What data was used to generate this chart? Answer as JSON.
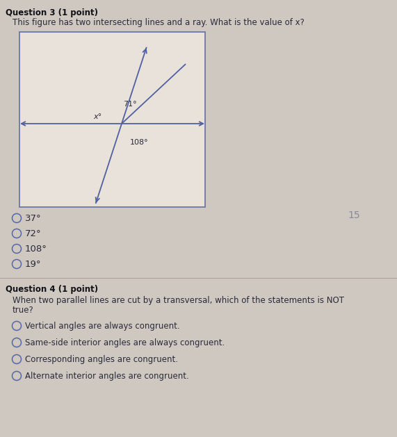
{
  "q3_header": "Question 3 (1 point)",
  "q3_text": "This figure has two intersecting lines and a ray. What is the value of x?",
  "angle_71": "71°",
  "angle_x": "x°",
  "angle_108": "108°",
  "q3_options": [
    "37°",
    "72°",
    "108°",
    "19°"
  ],
  "q4_header": "Question 4 (1 point)",
  "q4_text_line1": "When two parallel lines are cut by a transversal, which of the statements is NOT",
  "q4_text_line2": "true?",
  "q4_options": [
    "Vertical angles are always congruent.",
    "Same-side interior angles are always congruent.",
    "Corresponding angles are congruent.",
    "Alternate interior angles are congruent."
  ],
  "bg_color": "#cec8c0",
  "box_bg": "#e8e2da",
  "box_border": "#6878a8",
  "line_color": "#5060a0",
  "text_color": "#2a2a3a",
  "header_color": "#111118",
  "option_circle_color": "#5566aa",
  "page_number": "15",
  "page_num_color": "#888899",
  "fig_width": 5.71,
  "fig_height": 6.29
}
